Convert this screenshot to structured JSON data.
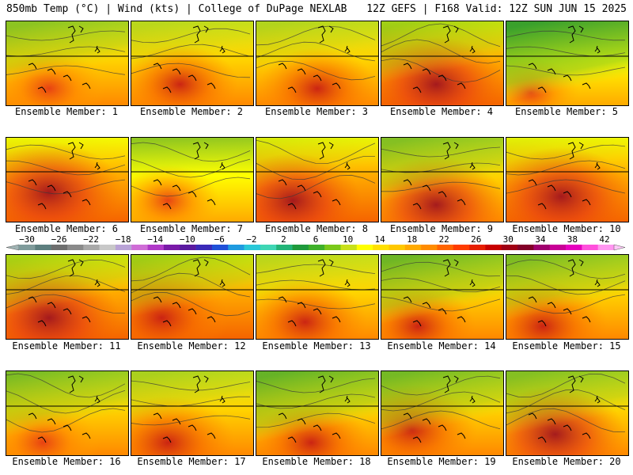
{
  "header": {
    "left": "850mb Temp (°C) | Wind (kts) | College of DuPage NEXLAB",
    "right": "12Z GEFS | F168 Valid: 12Z SUN JUN 15 2025"
  },
  "member_label_prefix": "Ensemble Member:",
  "members": [
    {
      "id": "1",
      "warmth": 0.55,
      "north_green": 0.5,
      "hot_x": 0.35,
      "hot_y": 0.8,
      "hot": 0.45
    },
    {
      "id": "2",
      "warmth": 0.6,
      "north_green": 0.2,
      "hot_x": 0.4,
      "hot_y": 0.75,
      "hot": 0.5
    },
    {
      "id": "3",
      "warmth": 0.65,
      "north_green": 0.25,
      "hot_x": 0.5,
      "hot_y": 0.8,
      "hot": 0.55
    },
    {
      "id": "4",
      "warmth": 0.7,
      "north_green": 0.5,
      "hot_x": 0.45,
      "hot_y": 0.75,
      "hot": 0.85
    },
    {
      "id": "5",
      "warmth": 0.3,
      "north_green": 1.0,
      "hot_x": 0.2,
      "hot_y": 0.85,
      "hot": 0.2
    },
    {
      "id": "6",
      "warmth": 0.8,
      "north_green": 0.1,
      "hot_x": 0.35,
      "hot_y": 0.65,
      "hot": 1.0
    },
    {
      "id": "7",
      "warmth": 0.45,
      "north_green": 0.15,
      "hot_x": 0.3,
      "hot_y": 0.75,
      "hot": 0.3
    },
    {
      "id": "8",
      "warmth": 0.75,
      "north_green": 0.2,
      "hot_x": 0.3,
      "hot_y": 0.75,
      "hot": 0.85
    },
    {
      "id": "9",
      "warmth": 0.65,
      "north_green": 0.55,
      "hot_x": 0.45,
      "hot_y": 0.8,
      "hot": 0.9
    },
    {
      "id": "10",
      "warmth": 0.7,
      "north_green": 0.15,
      "hot_x": 0.45,
      "hot_y": 0.7,
      "hot": 0.95
    },
    {
      "id": "11",
      "warmth": 0.7,
      "north_green": 0.45,
      "hot_x": 0.35,
      "hot_y": 0.75,
      "hot": 0.95
    },
    {
      "id": "12",
      "warmth": 0.7,
      "north_green": 0.5,
      "hot_x": 0.25,
      "hot_y": 0.75,
      "hot": 0.8
    },
    {
      "id": "13",
      "warmth": 0.65,
      "north_green": 0.2,
      "hot_x": 0.4,
      "hot_y": 0.8,
      "hot": 0.65
    },
    {
      "id": "14",
      "warmth": 0.5,
      "north_green": 0.7,
      "hot_x": 0.3,
      "hot_y": 0.85,
      "hot": 0.5
    },
    {
      "id": "15",
      "warmth": 0.55,
      "north_green": 0.6,
      "hot_x": 0.3,
      "hot_y": 0.85,
      "hot": 0.75
    },
    {
      "id": "16",
      "warmth": 0.5,
      "north_green": 0.6,
      "hot_x": 0.3,
      "hot_y": 0.85,
      "hot": 0.45
    },
    {
      "id": "17",
      "warmth": 0.65,
      "north_green": 0.3,
      "hot_x": 0.3,
      "hot_y": 0.85,
      "hot": 0.8
    },
    {
      "id": "18",
      "warmth": 0.55,
      "north_green": 0.75,
      "hot_x": 0.45,
      "hot_y": 0.85,
      "hot": 0.55
    },
    {
      "id": "19",
      "warmth": 0.55,
      "north_green": 0.65,
      "hot_x": 0.25,
      "hot_y": 0.7,
      "hot": 0.75
    },
    {
      "id": "20",
      "warmth": 0.6,
      "north_green": 0.55,
      "hot_x": 0.4,
      "hot_y": 0.75,
      "hot": 0.9
    }
  ],
  "colorbar": {
    "tick_labels": [
      "-30",
      "-26",
      "-22",
      "-18",
      "-14",
      "-10",
      "-6",
      "-2",
      "2",
      "6",
      "10",
      "14",
      "18",
      "22",
      "26",
      "30",
      "34",
      "38",
      "42"
    ],
    "colors": [
      "#7f9b9b",
      "#5d7f7f",
      "#6e6e6e",
      "#8a8a8a",
      "#a8a8a8",
      "#c8c8c8",
      "#b9a3d6",
      "#cf6dd6",
      "#b039c8",
      "#7a1aa8",
      "#5a1aa0",
      "#3a2ab8",
      "#1f50d8",
      "#1f9be0",
      "#29c8d8",
      "#3fd6b4",
      "#22b478",
      "#1f9a3c",
      "#3fb02a",
      "#7ac81a",
      "#c8e01a",
      "#ffff00",
      "#ffe000",
      "#ffc800",
      "#ffaa00",
      "#ff8c00",
      "#ff6400",
      "#ff3c00",
      "#e61e00",
      "#c80000",
      "#a00014",
      "#820028",
      "#a0006e",
      "#c80096",
      "#e600be",
      "#ff50dc",
      "#ff96f0"
    ]
  }
}
